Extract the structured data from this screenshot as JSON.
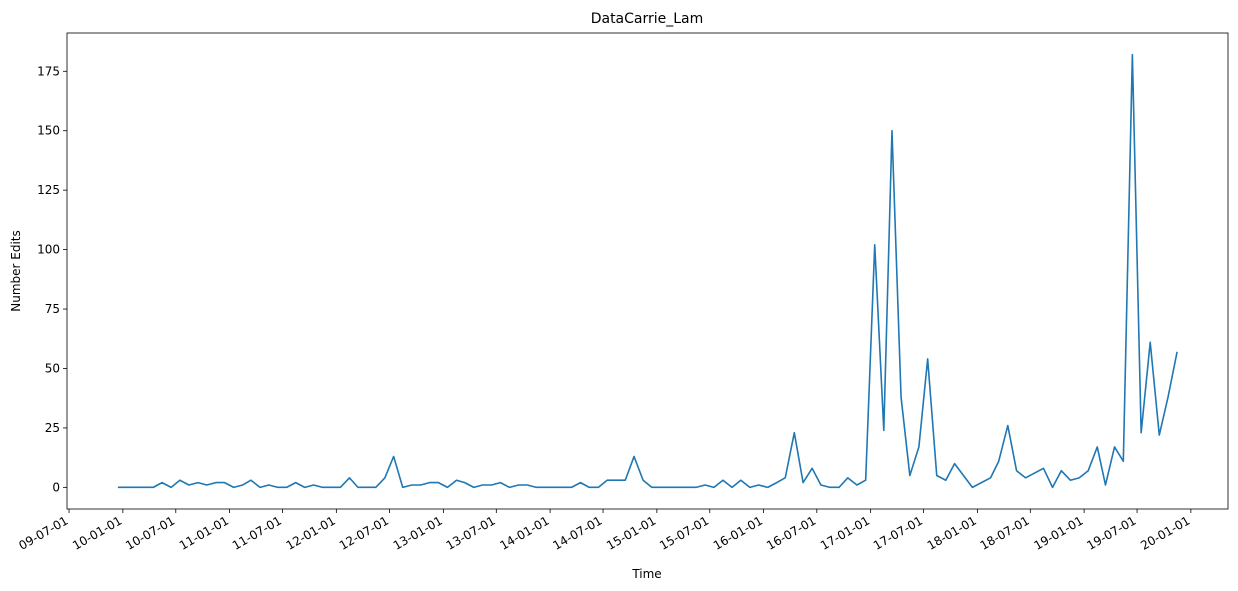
{
  "chart_data": {
    "type": "line",
    "title": "DataCarrie_Lam",
    "x_label": "Time",
    "y_label": "Number Edits",
    "x": [
      "2009-12-15",
      "2010-01-15",
      "2010-02-15",
      "2010-03-15",
      "2010-04-15",
      "2010-05-15",
      "2010-06-15",
      "2010-07-15",
      "2010-08-15",
      "2010-09-15",
      "2010-10-15",
      "2010-11-15",
      "2010-12-15",
      "2011-01-15",
      "2011-02-15",
      "2011-03-15",
      "2011-04-15",
      "2011-05-15",
      "2011-06-15",
      "2011-07-15",
      "2011-08-15",
      "2011-09-15",
      "2011-10-15",
      "2011-11-15",
      "2011-12-15",
      "2012-01-15",
      "2012-02-15",
      "2012-03-15",
      "2012-04-15",
      "2012-05-15",
      "2012-06-15",
      "2012-07-15",
      "2012-08-15",
      "2012-09-15",
      "2012-10-15",
      "2012-11-15",
      "2012-12-15",
      "2013-01-15",
      "2013-02-15",
      "2013-03-15",
      "2013-04-15",
      "2013-05-15",
      "2013-06-15",
      "2013-07-15",
      "2013-08-15",
      "2013-09-15",
      "2013-10-15",
      "2013-11-15",
      "2013-12-15",
      "2014-01-15",
      "2014-02-15",
      "2014-03-15",
      "2014-04-15",
      "2014-05-15",
      "2014-06-15",
      "2014-07-15",
      "2014-08-15",
      "2014-09-15",
      "2014-10-15",
      "2014-11-15",
      "2014-12-15",
      "2015-01-15",
      "2015-02-15",
      "2015-03-15",
      "2015-04-15",
      "2015-05-15",
      "2015-06-15",
      "2015-07-15",
      "2015-08-15",
      "2015-09-15",
      "2015-10-15",
      "2015-11-15",
      "2015-12-15",
      "2016-01-15",
      "2016-02-15",
      "2016-03-15",
      "2016-04-15",
      "2016-05-15",
      "2016-06-15",
      "2016-07-15",
      "2016-08-15",
      "2016-09-15",
      "2016-10-15",
      "2016-11-15",
      "2016-12-15",
      "2017-01-15",
      "2017-02-15",
      "2017-03-15",
      "2017-04-15",
      "2017-05-15",
      "2017-06-15",
      "2017-07-15",
      "2017-08-15",
      "2017-09-15",
      "2017-10-15",
      "2017-12-15",
      "2018-02-15",
      "2018-03-15",
      "2018-04-15",
      "2018-05-15",
      "2018-06-15",
      "2018-08-15",
      "2018-09-15",
      "2018-10-15",
      "2018-11-15",
      "2018-12-15",
      "2019-01-15",
      "2019-02-15",
      "2019-03-15",
      "2019-04-15",
      "2019-05-15",
      "2019-06-15",
      "2019-07-15",
      "2019-08-15",
      "2019-09-15",
      "2019-10-15",
      "2019-11-15"
    ],
    "series": [
      {
        "name": "DataCarrie_Lam",
        "color": "#1f77b4",
        "values": [
          0,
          0,
          0,
          0,
          0,
          2,
          0,
          3,
          1,
          2,
          1,
          2,
          2,
          0,
          1,
          3,
          0,
          1,
          0,
          0,
          2,
          0,
          1,
          0,
          0,
          0,
          4,
          0,
          0,
          0,
          4,
          13,
          0,
          1,
          1,
          2,
          2,
          0,
          3,
          2,
          0,
          1,
          1,
          2,
          0,
          1,
          1,
          0,
          0,
          0,
          0,
          0,
          2,
          0,
          0,
          3,
          3,
          3,
          13,
          3,
          0,
          0,
          0,
          0,
          0,
          0,
          1,
          0,
          3,
          0,
          3,
          0,
          1,
          0,
          2,
          4,
          23,
          2,
          8,
          1,
          0,
          0,
          4,
          1,
          3,
          102,
          24,
          150,
          38,
          5,
          17,
          54,
          5,
          3,
          10,
          0,
          4,
          11,
          26,
          7,
          4,
          8,
          0,
          7,
          3,
          4,
          7,
          17,
          1,
          17,
          11,
          182,
          23,
          61,
          22,
          38,
          57
        ]
      }
    ],
    "xlim": [
      "2009-06-24",
      "2020-05-07"
    ],
    "xticks": [
      {
        "value": "2009-07-01",
        "label": "09-07-01"
      },
      {
        "value": "2010-01-01",
        "label": "10-01-01"
      },
      {
        "value": "2010-07-01",
        "label": "10-07-01"
      },
      {
        "value": "2011-01-01",
        "label": "11-01-01"
      },
      {
        "value": "2011-07-01",
        "label": "11-07-01"
      },
      {
        "value": "2012-01-01",
        "label": "12-01-01"
      },
      {
        "value": "2012-07-01",
        "label": "12-07-01"
      },
      {
        "value": "2013-01-01",
        "label": "13-01-01"
      },
      {
        "value": "2013-07-01",
        "label": "13-07-01"
      },
      {
        "value": "2014-01-01",
        "label": "14-01-01"
      },
      {
        "value": "2014-07-01",
        "label": "14-07-01"
      },
      {
        "value": "2015-01-01",
        "label": "15-01-01"
      },
      {
        "value": "2015-07-01",
        "label": "15-07-01"
      },
      {
        "value": "2016-01-01",
        "label": "16-01-01"
      },
      {
        "value": "2016-07-01",
        "label": "16-07-01"
      },
      {
        "value": "2017-01-01",
        "label": "17-01-01"
      },
      {
        "value": "2017-07-01",
        "label": "17-07-01"
      },
      {
        "value": "2018-01-01",
        "label": "18-01-01"
      },
      {
        "value": "2018-07-01",
        "label": "18-07-01"
      },
      {
        "value": "2019-01-01",
        "label": "19-01-01"
      },
      {
        "value": "2019-07-01",
        "label": "19-07-01"
      },
      {
        "value": "2020-01-01",
        "label": "20-01-01"
      }
    ],
    "ylim": [
      -9.1,
      191.1
    ],
    "yticks": [
      0,
      25,
      50,
      75,
      100,
      125,
      150,
      175
    ],
    "grid": false
  }
}
